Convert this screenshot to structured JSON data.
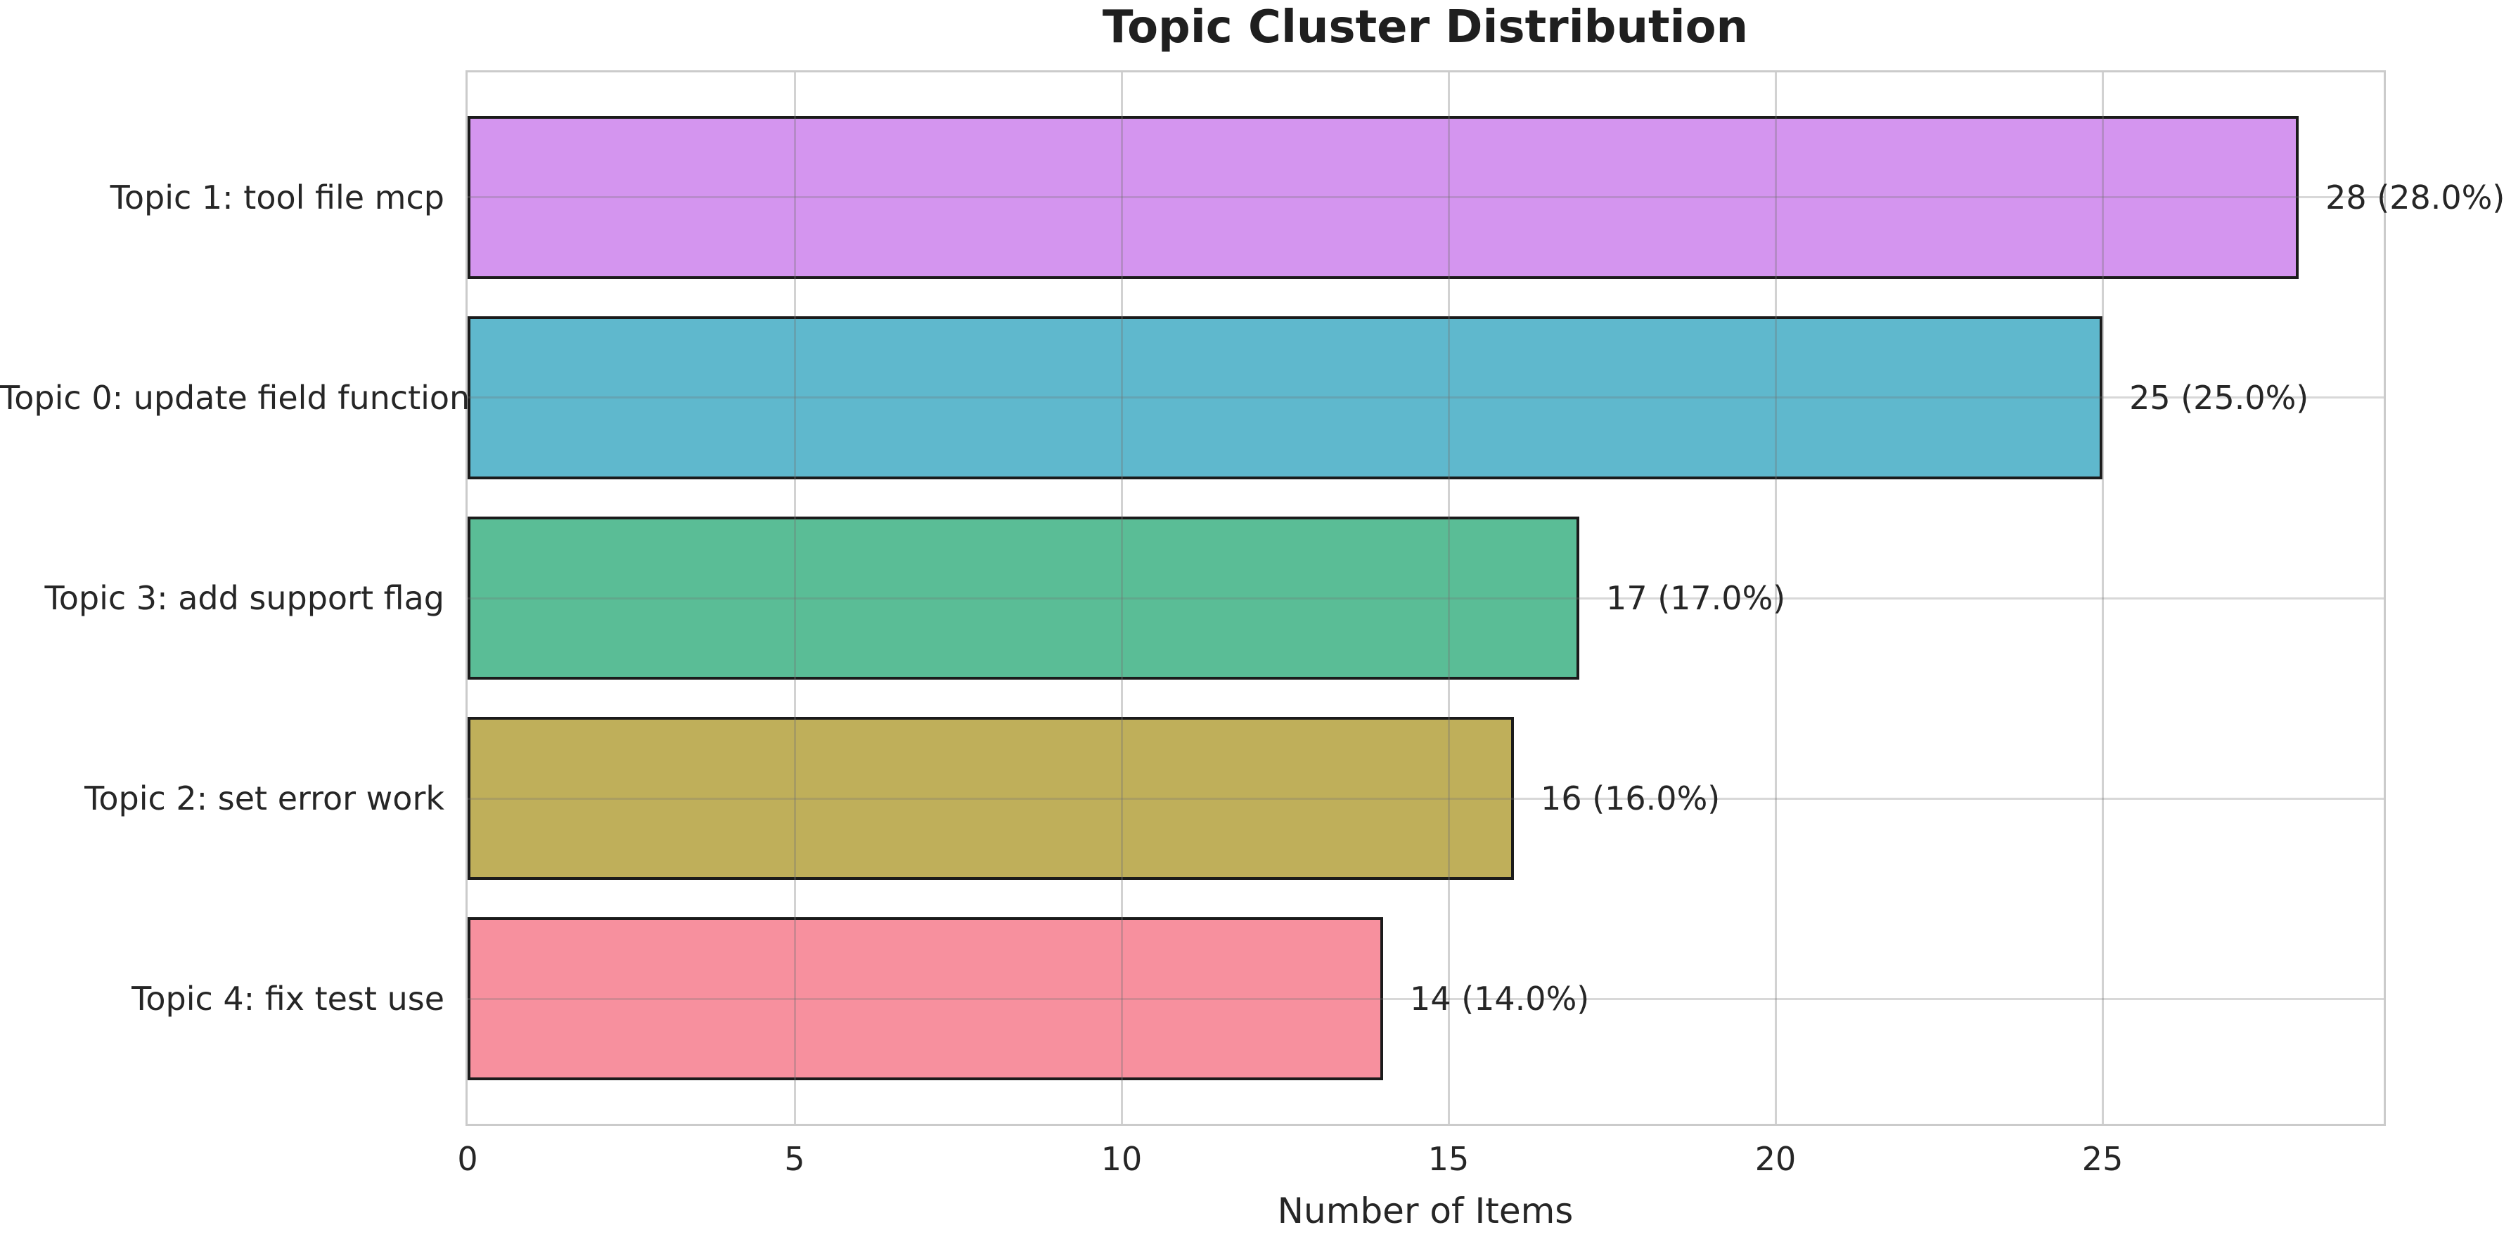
{
  "chart_data": {
    "type": "bar",
    "orientation": "horizontal",
    "title": "Topic Cluster Distribution",
    "xlabel": "Number of Items",
    "ylabel": "",
    "categories": [
      "Topic 1: tool file mcp",
      "Topic 0: update field function",
      "Topic 3: add support flag",
      "Topic 2: set error work",
      "Topic 4: fix test use"
    ],
    "values": [
      28,
      25,
      17,
      16,
      14
    ],
    "value_labels": [
      "28 (28.0%)",
      "25 (25.0%)",
      "17 (17.0%)",
      "16 (16.0%)",
      "14 (14.0%)"
    ],
    "bar_colors": [
      "#d495ef",
      "#5fb8cd",
      "#5abd96",
      "#bfaf5a",
      "#f7909e"
    ],
    "bar_edge_color": "#1b1b1b",
    "xticks": [
      0,
      5,
      10,
      15,
      20,
      25
    ],
    "xlim": [
      0,
      29.3
    ],
    "grid": true,
    "grid_color": "#d9d9d9",
    "spine_color": "#cbcbcb",
    "background_color": "#ffffff",
    "text_color": "#262626",
    "legend": false
  }
}
